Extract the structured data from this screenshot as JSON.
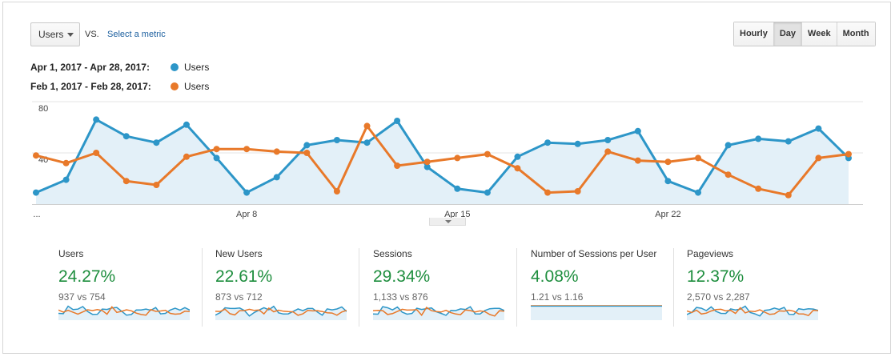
{
  "toolbar": {
    "metric": "Users",
    "vs": "VS.",
    "select_metric": "Select a metric",
    "granularity": [
      "Hourly",
      "Day",
      "Week",
      "Month"
    ],
    "active_granularity": "Day"
  },
  "legend": [
    {
      "range": "Apr 1, 2017 - Apr 28, 2017:",
      "metric": "Users",
      "color": "#2d96c8"
    },
    {
      "range": "Feb 1, 2017 - Feb 28, 2017:",
      "metric": "Users",
      "color": "#e8792a"
    }
  ],
  "chart_data": {
    "type": "line",
    "x_ticks": [
      "...",
      "Apr 8",
      "Apr 15",
      "Apr 22"
    ],
    "y_ticks": [
      "80",
      "40"
    ],
    "ylim": [
      0,
      80
    ],
    "grid": true,
    "series": [
      {
        "name": "Users",
        "color": "#2d96c8",
        "area": true,
        "values": [
          9,
          19,
          66,
          53,
          48,
          62,
          36,
          9,
          21,
          46,
          50,
          48,
          65,
          29,
          12,
          9,
          37,
          48,
          47,
          50,
          57,
          18,
          9,
          46,
          51,
          49,
          59,
          36
        ]
      },
      {
        "name": "Users",
        "color": "#e8792a",
        "area": false,
        "values": [
          38,
          32,
          40,
          18,
          15,
          37,
          43,
          43,
          41,
          40,
          10,
          61,
          30,
          33,
          36,
          39,
          28,
          9,
          10,
          41,
          34,
          33,
          36,
          23,
          12,
          7,
          36,
          39
        ]
      }
    ]
  },
  "scorecards": [
    {
      "title": "Users",
      "pct": "24.27%",
      "cmp": "937 vs 754",
      "spark": "wavy"
    },
    {
      "title": "New Users",
      "pct": "22.61%",
      "cmp": "873 vs 712",
      "spark": "wavy"
    },
    {
      "title": "Sessions",
      "pct": "29.34%",
      "cmp": "1,133 vs 876",
      "spark": "wavy"
    },
    {
      "title": "Number of Sessions per User",
      "pct": "4.08%",
      "cmp": "1.21 vs 1.16",
      "spark": "flat"
    },
    {
      "title": "Pageviews",
      "pct": "12.37%",
      "cmp": "2,570 vs 2,287",
      "spark": "wavy"
    }
  ]
}
